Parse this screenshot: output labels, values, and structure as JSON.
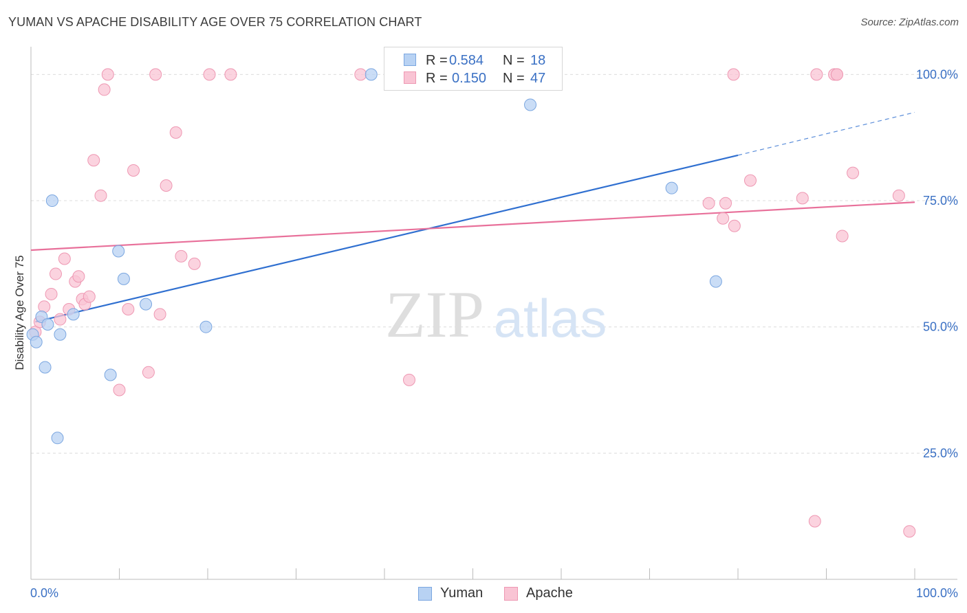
{
  "title": "YUMAN VS APACHE DISABILITY AGE OVER 75 CORRELATION CHART",
  "source": "Source: ZipAtlas.com",
  "watermark": {
    "zip": "ZIP",
    "atlas": "atlas"
  },
  "legend": {
    "yuman": {
      "r_label": "R =",
      "r_value": "0.584",
      "n_label": "N =",
      "n_value": "18"
    },
    "apache": {
      "r_label": "R =",
      "r_value": "0.150",
      "n_label": "N =",
      "n_value": "47"
    }
  },
  "bottom_legend": {
    "yuman": "Yuman",
    "apache": "Apache"
  },
  "colors": {
    "yuman_fill": "#b8d2f3",
    "yuman_stroke": "#7aa6e0",
    "yuman_line": "#2f6fd0",
    "apache_fill": "#f9c4d4",
    "apache_stroke": "#ee97b2",
    "apache_line": "#e8709a",
    "tick_label": "#3a70c4",
    "grid": "#dcdcdc"
  },
  "chart_data": {
    "type": "scatter",
    "xlabel": "",
    "ylabel": "Disability Age Over 75",
    "xlim": [
      0,
      100
    ],
    "ylim": [
      0,
      104
    ],
    "x_tick_labels": [
      {
        "value": 0,
        "label": "0.0%"
      },
      {
        "value": 100,
        "label": "100.0%"
      }
    ],
    "y_tick_labels": [
      {
        "value": 25,
        "label": "25.0%"
      },
      {
        "value": 50,
        "label": "50.0%"
      },
      {
        "value": 75,
        "label": "75.0%"
      },
      {
        "value": 100,
        "label": "100.0%"
      }
    ],
    "grid": true,
    "legend_position": "top-center",
    "series": [
      {
        "name": "Yuman",
        "points": [
          [
            0.2,
            48.5
          ],
          [
            0.6,
            47.0
          ],
          [
            1.2,
            52.0
          ],
          [
            1.6,
            42.0
          ],
          [
            1.9,
            50.5
          ],
          [
            2.4,
            75.0
          ],
          [
            3.0,
            28.0
          ],
          [
            3.3,
            48.5
          ],
          [
            4.8,
            52.5
          ],
          [
            9.0,
            40.5
          ],
          [
            9.9,
            65.0
          ],
          [
            10.5,
            59.5
          ],
          [
            13.0,
            54.5
          ],
          [
            19.8,
            50.0
          ],
          [
            38.5,
            100.0
          ],
          [
            56.5,
            94.0
          ],
          [
            72.5,
            77.5
          ],
          [
            77.5,
            59.0
          ]
        ],
        "trend": {
          "x": [
            0.5,
            80
          ],
          "y": [
            51.0,
            84.0
          ],
          "dashed_to": [
            100,
            92.5
          ]
        }
      },
      {
        "name": "Apache",
        "points": [
          [
            0.5,
            49.0
          ],
          [
            1.0,
            51.0
          ],
          [
            1.5,
            54.0
          ],
          [
            2.3,
            56.5
          ],
          [
            2.8,
            60.5
          ],
          [
            3.3,
            51.5
          ],
          [
            3.8,
            63.5
          ],
          [
            4.3,
            53.5
          ],
          [
            5.0,
            59.0
          ],
          [
            5.4,
            60.0
          ],
          [
            5.8,
            55.5
          ],
          [
            6.1,
            54.5
          ],
          [
            6.6,
            56.0
          ],
          [
            7.1,
            83.0
          ],
          [
            7.9,
            76.0
          ],
          [
            8.3,
            97.0
          ],
          [
            8.7,
            100.0
          ],
          [
            10.0,
            37.5
          ],
          [
            11.0,
            53.5
          ],
          [
            11.6,
            81.0
          ],
          [
            13.3,
            41.0
          ],
          [
            14.1,
            100.0
          ],
          [
            14.6,
            52.5
          ],
          [
            15.3,
            78.0
          ],
          [
            16.4,
            88.5
          ],
          [
            17.0,
            64.0
          ],
          [
            18.5,
            62.5
          ],
          [
            20.2,
            100.0
          ],
          [
            22.6,
            100.0
          ],
          [
            37.3,
            100.0
          ],
          [
            42.8,
            39.5
          ],
          [
            76.7,
            74.5
          ],
          [
            78.3,
            71.5
          ],
          [
            78.6,
            74.5
          ],
          [
            79.5,
            100.0
          ],
          [
            79.6,
            70.0
          ],
          [
            81.4,
            79.0
          ],
          [
            87.3,
            75.5
          ],
          [
            88.7,
            11.5
          ],
          [
            88.9,
            100.0
          ],
          [
            90.9,
            100.0
          ],
          [
            91.2,
            100.0
          ],
          [
            91.2,
            100.0
          ],
          [
            91.8,
            68.0
          ],
          [
            93.0,
            80.5
          ],
          [
            98.2,
            76.0
          ],
          [
            99.4,
            9.5
          ]
        ],
        "trend": {
          "x": [
            0,
            100
          ],
          "y": [
            65.2,
            74.7
          ]
        }
      }
    ]
  }
}
